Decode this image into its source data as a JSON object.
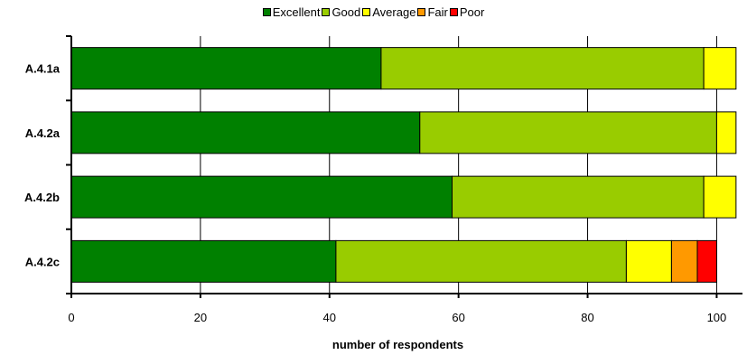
{
  "chart_data": {
    "type": "bar",
    "orientation": "horizontal",
    "stacked": true,
    "categories": [
      "A.4.1a",
      "A.4.2a",
      "A.4.2b",
      "A.4.2c"
    ],
    "series": [
      {
        "name": "Excellent",
        "color": "#008000",
        "values": [
          48,
          54,
          59,
          41
        ]
      },
      {
        "name": "Good",
        "color": "#99cc00",
        "values": [
          50,
          46,
          39,
          45
        ]
      },
      {
        "name": "Average",
        "color": "#ffff00",
        "values": [
          5,
          3,
          5,
          7
        ]
      },
      {
        "name": "Fair",
        "color": "#ff9900",
        "values": [
          0,
          0,
          0,
          4
        ]
      },
      {
        "name": "Poor",
        "color": "#ff0000",
        "values": [
          0,
          0,
          0,
          3
        ]
      }
    ],
    "xlabel": "number of respondents",
    "ylabel": "",
    "xlim": [
      0,
      104
    ],
    "xticks": [
      0,
      20,
      40,
      60,
      80,
      100
    ],
    "grid": "vertical",
    "legend": "top-center"
  }
}
